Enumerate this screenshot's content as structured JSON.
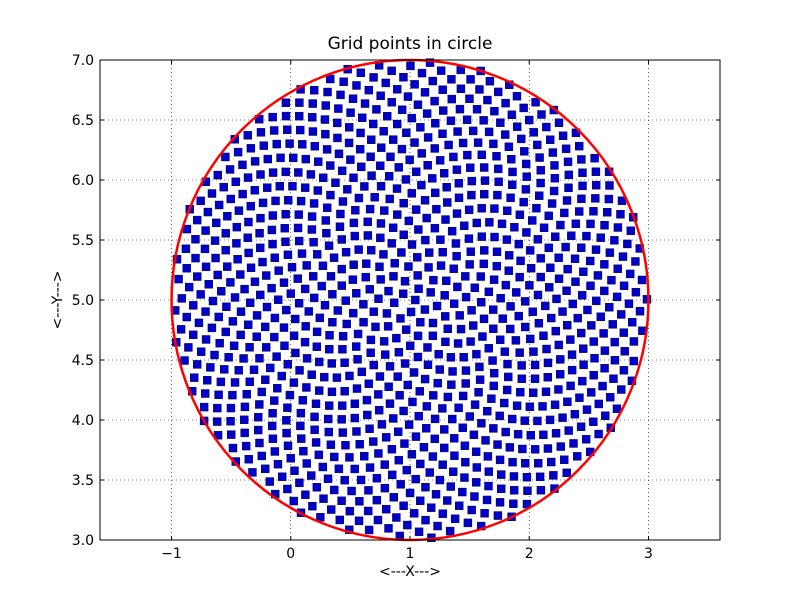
{
  "chart_data": {
    "type": "scatter",
    "title": "Grid points in circle",
    "xlabel": "<---X--->",
    "ylabel": "<---Y--->",
    "xlim": [
      -1.6,
      3.6
    ],
    "ylim": [
      3.0,
      7.0
    ],
    "x_ticks": [
      -1,
      0,
      1,
      2,
      3
    ],
    "x_tick_labels": [
      "−1",
      "0",
      "1",
      "2",
      "3"
    ],
    "y_ticks": [
      3.0,
      3.5,
      4.0,
      4.5,
      5.0,
      5.5,
      6.0,
      6.5,
      7.0
    ],
    "y_tick_labels": [
      "3.0",
      "3.5",
      "4.0",
      "4.5",
      "5.0",
      "5.5",
      "6.0",
      "6.5",
      "7.0"
    ],
    "grid": true,
    "circle": {
      "center": [
        1.0,
        5.0
      ],
      "radius": 2.0,
      "color": "#ff0000"
    },
    "points": {
      "distribution": "sunflower spiral filling the circle",
      "count": 1000,
      "center": [
        1.0,
        5.0
      ],
      "radius": 2.0,
      "marker": "square",
      "color": "#0000cc"
    }
  }
}
